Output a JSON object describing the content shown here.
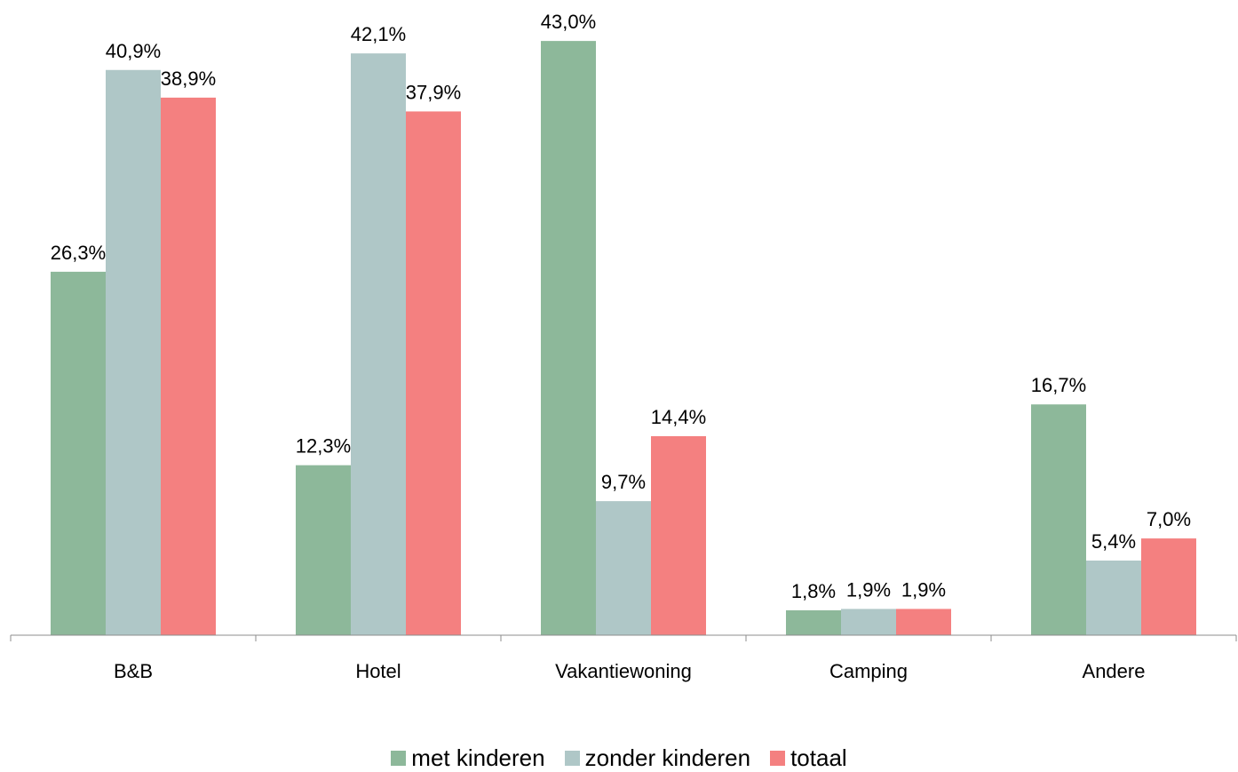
{
  "chart_data": {
    "type": "bar",
    "categories": [
      "B&B",
      "Hotel",
      "Vakantiewoning",
      "Camping",
      "Andere"
    ],
    "series": [
      {
        "name": "met kinderen",
        "color": "#8db89a",
        "values": [
          26.3,
          12.3,
          43.0,
          1.8,
          16.7
        ],
        "labels": [
          "26,3%",
          "12,3%",
          "43,0%",
          "1,8%",
          "16,7%"
        ]
      },
      {
        "name": "zonder kinderen",
        "color": "#afc7c7",
        "values": [
          40.9,
          42.1,
          9.7,
          1.9,
          5.4
        ],
        "labels": [
          "40,9%",
          "42,1%",
          "9,7%",
          "1,9%",
          "5,4%"
        ]
      },
      {
        "name": "totaal",
        "color": "#f48080",
        "values": [
          38.9,
          37.9,
          14.4,
          1.9,
          7.0
        ],
        "labels": [
          "38,9%",
          "37,9%",
          "14,4%",
          "1,9%",
          "7,0%"
        ]
      }
    ],
    "ylim": [
      0,
      45
    ],
    "legend_position": "bottom",
    "grid": false
  }
}
